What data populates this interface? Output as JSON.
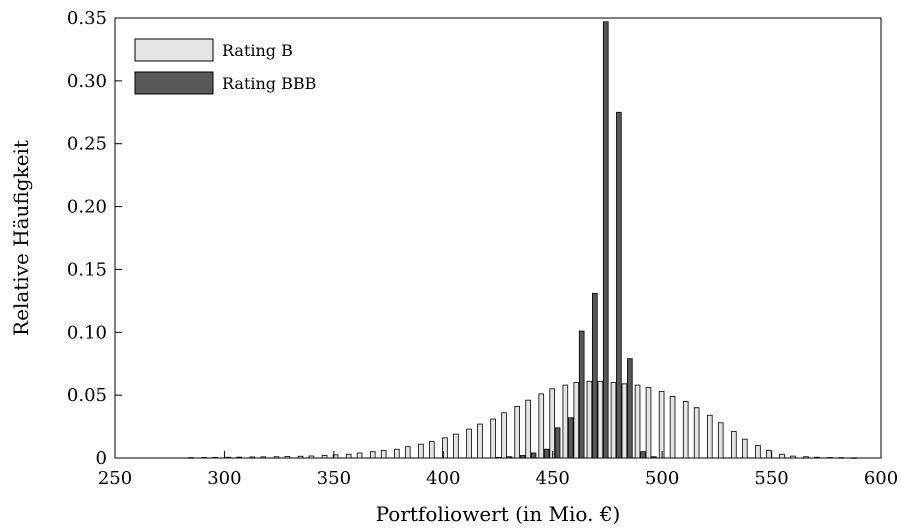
{
  "chart_data": {
    "type": "bar",
    "xlabel": "Portfoliowert (in Mio. €)",
    "ylabel": "Relative Häufigkeit",
    "xlim": [
      250,
      600
    ],
    "ylim": [
      0,
      0.35
    ],
    "xticks": [
      "250",
      "300",
      "350",
      "400",
      "450",
      "500",
      "550",
      "600"
    ],
    "yticks": [
      "0",
      "0.05",
      "0.10",
      "0.15",
      "0.20",
      "0.25",
      "0.30",
      "0.35"
    ],
    "legend_position": "top-left",
    "x": [
      286,
      292,
      297,
      303,
      308,
      314,
      319,
      325,
      330,
      336,
      341,
      347,
      352,
      358,
      363,
      369,
      374,
      380,
      385,
      391,
      396,
      402,
      407,
      413,
      418,
      424,
      429,
      435,
      440,
      446,
      451,
      457,
      462,
      468,
      473,
      479,
      484,
      490,
      495,
      501,
      506,
      512,
      517,
      523,
      528,
      534,
      539,
      545,
      550,
      556,
      561,
      567,
      572,
      578,
      583,
      589
    ],
    "series": [
      {
        "name": "Rating B",
        "color": "#e4e4e4",
        "values": [
          0.0003,
          0.0004,
          0.0005,
          0.0006,
          0.0007,
          0.0008,
          0.0009,
          0.001,
          0.0012,
          0.0014,
          0.0016,
          0.002,
          0.0025,
          0.003,
          0.004,
          0.005,
          0.006,
          0.007,
          0.009,
          0.011,
          0.013,
          0.016,
          0.019,
          0.023,
          0.027,
          0.031,
          0.036,
          0.041,
          0.046,
          0.051,
          0.055,
          0.058,
          0.06,
          0.061,
          0.061,
          0.06,
          0.059,
          0.058,
          0.056,
          0.053,
          0.049,
          0.045,
          0.04,
          0.034,
          0.028,
          0.021,
          0.015,
          0.01,
          0.006,
          0.003,
          0.0015,
          0.001,
          0.0006,
          0.0004,
          0.0003,
          0.0002
        ]
      },
      {
        "name": "Rating BBB",
        "color": "#585858",
        "values": [
          0,
          0,
          0,
          0,
          0,
          0,
          0,
          0,
          0,
          0,
          0,
          0,
          0,
          0,
          0,
          0,
          0,
          0,
          0,
          0,
          0,
          0,
          0,
          0,
          0,
          0.0005,
          0.001,
          0.002,
          0.004,
          0.007,
          0.024,
          0.032,
          0.101,
          0.131,
          0.347,
          0.275,
          0.079,
          0.005,
          0.001,
          0,
          0,
          0,
          0,
          0,
          0,
          0,
          0,
          0,
          0,
          0,
          0,
          0,
          0,
          0,
          0,
          0
        ]
      }
    ]
  }
}
